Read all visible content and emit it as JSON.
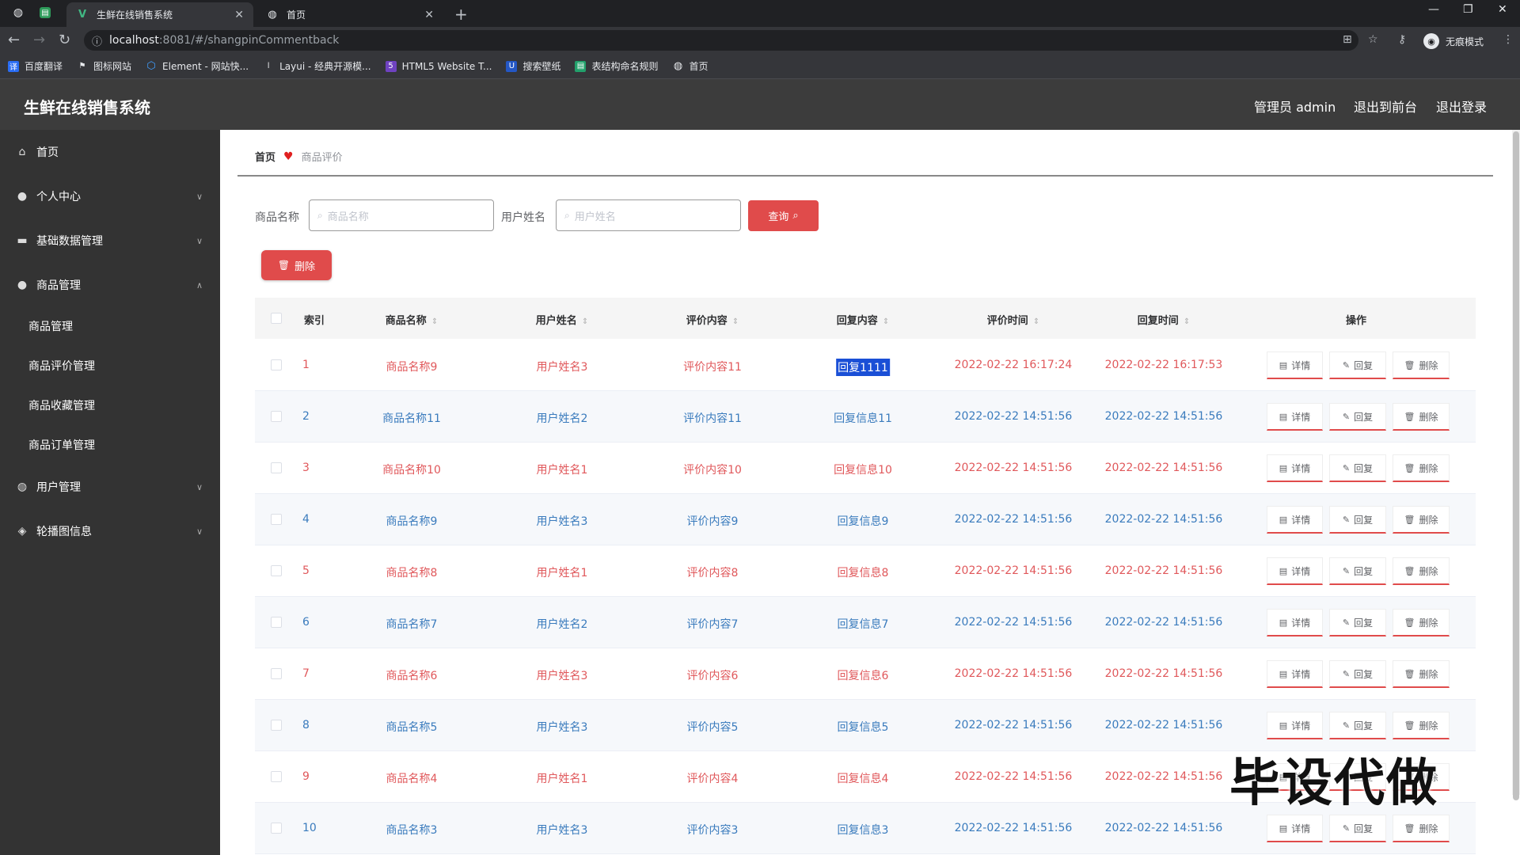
{
  "browser": {
    "tabs": [
      {
        "title": "生鲜在线销售系统",
        "active": true
      },
      {
        "title": "首页",
        "active": false
      }
    ],
    "new_tab": "+",
    "url_host": "localhost",
    "url_path": ":8081/#/shangpinCommentback",
    "incognito_label": "无痕模式",
    "bookmarks": [
      {
        "label": "百度翻译",
        "icon": "translate-icon",
        "color": "#2a6df4"
      },
      {
        "label": "图标网站",
        "icon": "flag-icon",
        "color": "#555555"
      },
      {
        "label": "Element - 网站快...",
        "icon": "element-icon",
        "color": "#409eff"
      },
      {
        "label": "Layui - 经典开源模...",
        "icon": "layui-icon",
        "color": "#555555"
      },
      {
        "label": "HTML5 Website T...",
        "icon": "html5-icon",
        "color": "#6f42c1"
      },
      {
        "label": "搜索壁纸",
        "icon": "wallpaper-icon",
        "color": "#2457c5"
      },
      {
        "label": "表结构命名规则",
        "icon": "table-icon",
        "color": "#22a06b"
      },
      {
        "label": "首页",
        "icon": "globe-icon",
        "color": "#555555"
      }
    ]
  },
  "header": {
    "title": "生鲜在线销售系统",
    "admin_label": "管理员 admin",
    "front_label": "退出到前台",
    "logout_label": "退出登录"
  },
  "sidebar": {
    "items": [
      {
        "label": "首页",
        "icon": "home-icon",
        "chevron": ""
      },
      {
        "label": "个人中心",
        "icon": "user-icon",
        "chevron": "∨"
      },
      {
        "label": "基础数据管理",
        "icon": "briefcase-icon",
        "chevron": "∨"
      },
      {
        "label": "商品管理",
        "icon": "user-icon",
        "chevron": "∧"
      },
      {
        "label": "用户管理",
        "icon": "globe-icon",
        "chevron": "∨"
      },
      {
        "label": "轮播图信息",
        "icon": "compass-icon",
        "chevron": "∨"
      }
    ],
    "submenu": [
      "商品管理",
      "商品评价管理",
      "商品收藏管理",
      "商品订单管理"
    ]
  },
  "breadcrumb": {
    "home": "首页",
    "current": "商品评价"
  },
  "filters": {
    "product_label": "商品名称",
    "product_placeholder": "商品名称",
    "user_label": "用户姓名",
    "user_placeholder": "用户姓名",
    "query_label": "查询",
    "delete_label": "删除"
  },
  "table": {
    "columns": [
      "索引",
      "商品名称",
      "用户姓名",
      "评价内容",
      "回复内容",
      "评价时间",
      "回复时间",
      "操作"
    ],
    "action_labels": {
      "detail": "详情",
      "reply": "回复",
      "delete": "删除"
    },
    "rows": [
      {
        "index": "1",
        "product": "商品名称9",
        "user": "用户姓名3",
        "comment": "评价内容11",
        "reply": "回复1111",
        "comment_time": "2022-02-22 16:17:24",
        "reply_time": "2022-02-22 16:17:53",
        "color": "red",
        "selected": true
      },
      {
        "index": "2",
        "product": "商品名称11",
        "user": "用户姓名2",
        "comment": "评价内容11",
        "reply": "回复信息11",
        "comment_time": "2022-02-22 14:51:56",
        "reply_time": "2022-02-22 14:51:56",
        "color": "blue"
      },
      {
        "index": "3",
        "product": "商品名称10",
        "user": "用户姓名1",
        "comment": "评价内容10",
        "reply": "回复信息10",
        "comment_time": "2022-02-22 14:51:56",
        "reply_time": "2022-02-22 14:51:56",
        "color": "red"
      },
      {
        "index": "4",
        "product": "商品名称9",
        "user": "用户姓名3",
        "comment": "评价内容9",
        "reply": "回复信息9",
        "comment_time": "2022-02-22 14:51:56",
        "reply_time": "2022-02-22 14:51:56",
        "color": "blue"
      },
      {
        "index": "5",
        "product": "商品名称8",
        "user": "用户姓名1",
        "comment": "评价内容8",
        "reply": "回复信息8",
        "comment_time": "2022-02-22 14:51:56",
        "reply_time": "2022-02-22 14:51:56",
        "color": "red"
      },
      {
        "index": "6",
        "product": "商品名称7",
        "user": "用户姓名2",
        "comment": "评价内容7",
        "reply": "回复信息7",
        "comment_time": "2022-02-22 14:51:56",
        "reply_time": "2022-02-22 14:51:56",
        "color": "blue"
      },
      {
        "index": "7",
        "product": "商品名称6",
        "user": "用户姓名3",
        "comment": "评价内容6",
        "reply": "回复信息6",
        "comment_time": "2022-02-22 14:51:56",
        "reply_time": "2022-02-22 14:51:56",
        "color": "red"
      },
      {
        "index": "8",
        "product": "商品名称5",
        "user": "用户姓名3",
        "comment": "评价内容5",
        "reply": "回复信息5",
        "comment_time": "2022-02-22 14:51:56",
        "reply_time": "2022-02-22 14:51:56",
        "color": "blue"
      },
      {
        "index": "9",
        "product": "商品名称4",
        "user": "用户姓名1",
        "comment": "评价内容4",
        "reply": "回复信息4",
        "comment_time": "2022-02-22 14:51:56",
        "reply_time": "2022-02-22 14:51:56",
        "color": "red"
      },
      {
        "index": "10",
        "product": "商品名称3",
        "user": "用户姓名3",
        "comment": "评价内容3",
        "reply": "回复信息3",
        "comment_time": "2022-02-22 14:51:56",
        "reply_time": "2022-02-22 14:51:56",
        "color": "blue"
      }
    ]
  },
  "watermark": "毕设代做",
  "colors": {
    "accent": "#e04b4b",
    "header_bg": "#3c3c3c",
    "sidebar_bg": "#333333",
    "row_red": "#e0585b",
    "row_blue": "#3a7bbd"
  }
}
